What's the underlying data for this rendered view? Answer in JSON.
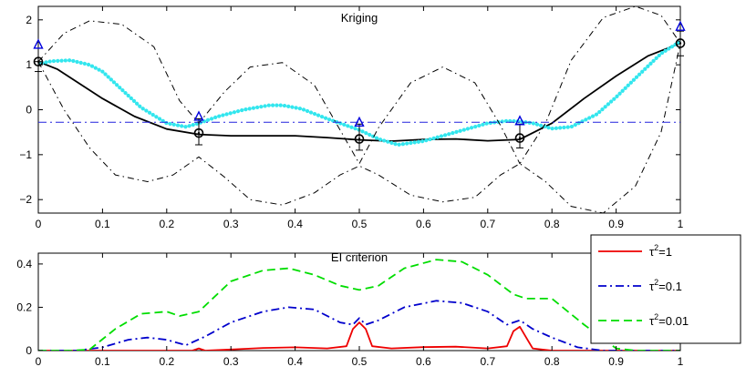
{
  "chart_data": [
    {
      "type": "line",
      "title": "Kriging",
      "xlabel": "",
      "ylabel": "",
      "xlim": [
        0,
        1
      ],
      "ylim": [
        -2.3,
        2.3
      ],
      "xticks": [
        0,
        0.1,
        0.2,
        0.3,
        0.4,
        0.5,
        0.6,
        0.7,
        0.8,
        0.9,
        1
      ],
      "xtick_labels": [
        "0",
        "0.1",
        "0.2",
        "0.3",
        "0.4",
        "0.5",
        "0.6",
        "0.7",
        "0.8",
        "0.9",
        "1"
      ],
      "yticks": [
        -2,
        -1,
        0,
        1,
        2
      ],
      "ytick_labels": [
        "−2",
        "−1",
        "0",
        "1",
        "2"
      ],
      "grid": false,
      "series": [
        {
          "style": "solid",
          "color": "#000000",
          "x": [
            0,
            0.03,
            0.06,
            0.1,
            0.15,
            0.2,
            0.25,
            0.3,
            0.35,
            0.4,
            0.45,
            0.5,
            0.55,
            0.6,
            0.65,
            0.7,
            0.75,
            0.8,
            0.85,
            0.9,
            0.95,
            1
          ],
          "y": [
            1.07,
            0.9,
            0.62,
            0.25,
            -0.15,
            -0.43,
            -0.55,
            -0.58,
            -0.58,
            -0.58,
            -0.62,
            -0.67,
            -0.7,
            -0.66,
            -0.65,
            -0.69,
            -0.66,
            -0.3,
            0.25,
            0.75,
            1.2,
            1.48
          ]
        },
        {
          "style": "dotted-thick",
          "color": "#33e6ee",
          "x": [
            0,
            0.02,
            0.05,
            0.08,
            0.1,
            0.13,
            0.16,
            0.2,
            0.23,
            0.25,
            0.28,
            0.32,
            0.36,
            0.38,
            0.41,
            0.45,
            0.48,
            0.5,
            0.53,
            0.56,
            0.6,
            0.63,
            0.67,
            0.7,
            0.73,
            0.75,
            0.77,
            0.8,
            0.83,
            0.87,
            0.9,
            0.93,
            0.97,
            1
          ],
          "y": [
            1.02,
            1.08,
            1.1,
            1.0,
            0.85,
            0.45,
            0.05,
            -0.3,
            -0.38,
            -0.3,
            -0.15,
            0.0,
            0.1,
            0.1,
            0.02,
            -0.2,
            -0.35,
            -0.45,
            -0.65,
            -0.78,
            -0.7,
            -0.58,
            -0.42,
            -0.3,
            -0.25,
            -0.26,
            -0.3,
            -0.42,
            -0.38,
            -0.1,
            0.28,
            0.7,
            1.25,
            1.52
          ]
        },
        {
          "style": "dashdot-thin",
          "color": "#000000",
          "x": [
            0,
            0.04,
            0.08,
            0.13,
            0.18,
            0.22,
            0.25,
            0.29,
            0.33,
            0.38,
            0.43,
            0.47,
            0.5,
            0.53,
            0.58,
            0.63,
            0.68,
            0.72,
            0.75,
            0.79,
            0.83,
            0.88,
            0.93,
            0.97,
            1
          ],
          "y": [
            1.07,
            1.7,
            1.98,
            1.9,
            1.4,
            0.2,
            -0.3,
            0.4,
            0.95,
            1.05,
            0.55,
            -0.45,
            -1.2,
            -0.4,
            0.6,
            0.95,
            0.6,
            -0.35,
            -1.2,
            -0.3,
            1.1,
            2.05,
            2.3,
            2.1,
            1.48
          ]
        },
        {
          "style": "dashdot-thin",
          "color": "#000000",
          "x": [
            0,
            0.04,
            0.08,
            0.12,
            0.17,
            0.21,
            0.25,
            0.29,
            0.33,
            0.38,
            0.43,
            0.47,
            0.5,
            0.53,
            0.58,
            0.63,
            0.68,
            0.72,
            0.75,
            0.79,
            0.83,
            0.88,
            0.93,
            0.97,
            1
          ],
          "y": [
            1.07,
            0.0,
            -0.85,
            -1.45,
            -1.6,
            -1.45,
            -1.05,
            -1.5,
            -2.0,
            -2.12,
            -1.85,
            -1.45,
            -1.25,
            -1.45,
            -1.9,
            -2.05,
            -1.95,
            -1.45,
            -1.2,
            -1.6,
            -2.15,
            -2.3,
            -1.7,
            -0.5,
            1.48
          ]
        },
        {
          "style": "dashdot",
          "color": "#2222dd",
          "x": [
            0,
            1
          ],
          "y": [
            -0.28,
            -0.28
          ]
        }
      ],
      "observations": {
        "x": [
          0,
          0.25,
          0.5,
          0.75,
          1
        ],
        "y": [
          1.07,
          -0.52,
          -0.65,
          -0.63,
          1.48
        ],
        "err_low": [
          0.85,
          -0.78,
          -0.9,
          -0.85,
          1.2
        ],
        "err_high": [
          1.07,
          -0.2,
          -0.32,
          -0.32,
          1.75
        ]
      },
      "triangles": {
        "x": [
          0,
          0.25,
          0.5,
          0.75,
          1
        ],
        "y": [
          1.45,
          -0.15,
          -0.28,
          -0.25,
          1.85
        ]
      }
    },
    {
      "type": "line",
      "title": "EI criterion",
      "xlabel": "",
      "ylabel": "",
      "xlim": [
        0,
        1
      ],
      "ylim": [
        0,
        0.45
      ],
      "xticks": [
        0,
        0.1,
        0.2,
        0.3,
        0.4,
        0.5,
        0.6,
        0.7,
        0.8,
        0.9,
        1
      ],
      "xtick_labels": [
        "0",
        "0.1",
        "0.2",
        "0.3",
        "0.4",
        "0.5",
        "0.6",
        "0.7",
        "0.8",
        "0.9",
        "1"
      ],
      "yticks": [
        0,
        0.2,
        0.4
      ],
      "ytick_labels": [
        "0",
        "0.2",
        "0.4"
      ],
      "grid": false,
      "legend_position": "top-right",
      "series": [
        {
          "name_base": "τ",
          "name_sup": "2",
          "name_suffix": "=1",
          "style": "solid",
          "color": "#ee0000",
          "x": [
            0,
            0.24,
            0.25,
            0.26,
            0.3,
            0.35,
            0.4,
            0.45,
            0.48,
            0.49,
            0.5,
            0.51,
            0.52,
            0.55,
            0.6,
            0.65,
            0.7,
            0.73,
            0.74,
            0.75,
            0.76,
            0.77,
            0.8,
            1
          ],
          "y": [
            0,
            0,
            0.01,
            0,
            0.005,
            0.012,
            0.015,
            0.01,
            0.02,
            0.1,
            0.13,
            0.1,
            0.02,
            0.01,
            0.016,
            0.018,
            0.01,
            0.02,
            0.09,
            0.11,
            0.06,
            0.01,
            0,
            0
          ]
        },
        {
          "name_base": "τ",
          "name_sup": "2",
          "name_suffix": "=0.1",
          "style": "dashdot",
          "color": "#0000cc",
          "x": [
            0,
            0.06,
            0.1,
            0.14,
            0.17,
            0.2,
            0.23,
            0.26,
            0.3,
            0.35,
            0.39,
            0.43,
            0.47,
            0.49,
            0.5,
            0.51,
            0.53,
            0.57,
            0.62,
            0.66,
            0.7,
            0.73,
            0.75,
            0.77,
            0.8,
            0.84,
            0.88,
            1
          ],
          "y": [
            0,
            0,
            0.015,
            0.05,
            0.06,
            0.05,
            0.025,
            0.065,
            0.13,
            0.18,
            0.2,
            0.19,
            0.13,
            0.12,
            0.15,
            0.12,
            0.14,
            0.2,
            0.23,
            0.22,
            0.18,
            0.12,
            0.14,
            0.1,
            0.06,
            0.015,
            0,
            0
          ]
        },
        {
          "name_base": "τ",
          "name_sup": "2",
          "name_suffix": "=0.01",
          "style": "dashed",
          "color": "#00dd00",
          "x": [
            0,
            0.05,
            0.08,
            0.12,
            0.16,
            0.2,
            0.22,
            0.25,
            0.3,
            0.35,
            0.39,
            0.43,
            0.47,
            0.5,
            0.53,
            0.57,
            0.62,
            0.66,
            0.7,
            0.74,
            0.76,
            0.8,
            0.85,
            0.9,
            0.93,
            1
          ],
          "y": [
            0,
            0,
            0.005,
            0.1,
            0.17,
            0.18,
            0.16,
            0.18,
            0.32,
            0.37,
            0.38,
            0.35,
            0.3,
            0.28,
            0.3,
            0.38,
            0.42,
            0.41,
            0.35,
            0.26,
            0.24,
            0.24,
            0.12,
            0.01,
            0,
            0
          ]
        }
      ]
    }
  ]
}
